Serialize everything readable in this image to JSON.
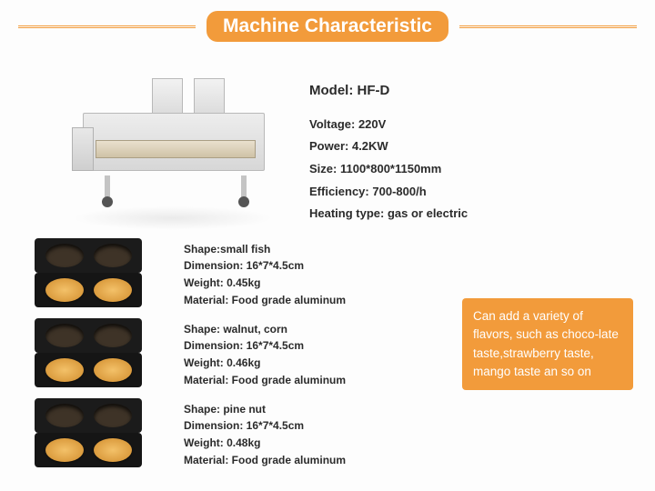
{
  "header": {
    "title": "Machine Characteristic",
    "accent_color": "#f29b3b",
    "title_color": "#ffffff"
  },
  "machine_specs": {
    "model_label": "Model:",
    "model_value": "HF-D",
    "rows": [
      {
        "label": "Voltage:",
        "value": "220V"
      },
      {
        "label": "Power:",
        "value": "4.2KW"
      },
      {
        "label": "Size:",
        "value": "1100*800*1150mm"
      },
      {
        "label": "Efficiency:",
        "value": "700-800/h"
      },
      {
        "label": "Heating type:",
        "value": "gas or electric"
      }
    ]
  },
  "molds": [
    {
      "shape": "Shape:small fish",
      "dimension": "Dimension: 16*7*4.5cm",
      "weight": "Weight: 0.45kg",
      "material": "Material: Food grade aluminum"
    },
    {
      "shape": "Shape: walnut, corn",
      "dimension": "Dimension: 16*7*4.5cm",
      "weight": "Weight: 0.46kg",
      "material": "Material: Food grade aluminum"
    },
    {
      "shape": "Shape: pine nut",
      "dimension": "Dimension: 16*7*4.5cm",
      "weight": "Weight: 0.48kg",
      "material": "Material: Food grade aluminum"
    }
  ],
  "callout": {
    "text": "Can add a variety of flavors, such as choco-late taste,strawberry taste, mango taste an so on",
    "bg_color": "#f29b3b",
    "text_color": "#ffffff"
  }
}
